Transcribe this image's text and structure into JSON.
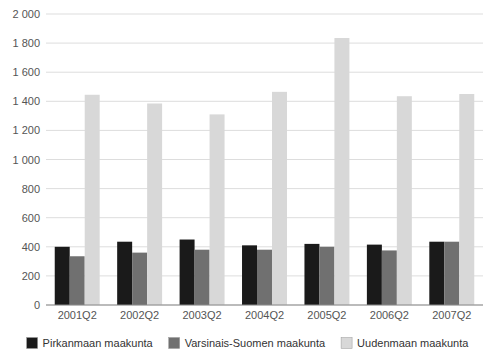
{
  "chart_data": {
    "type": "bar",
    "categories": [
      "2001Q2",
      "2002Q2",
      "2003Q2",
      "2004Q2",
      "2005Q2",
      "2006Q2",
      "2007Q2"
    ],
    "series": [
      {
        "name": "Pirkanmaan maakunta",
        "color": "#1a1a1a",
        "values": [
          400,
          435,
          450,
          410,
          420,
          415,
          435
        ]
      },
      {
        "name": "Varsinais-Suomen maakunta",
        "color": "#707070",
        "values": [
          335,
          360,
          380,
          380,
          400,
          375,
          435
        ]
      },
      {
        "name": "Uudenmaan maakunta",
        "color": "#d8d8d8",
        "values": [
          1445,
          1385,
          1310,
          1465,
          1835,
          1435,
          1450
        ]
      }
    ],
    "ylim": [
      0,
      2000
    ],
    "yticks": [
      0,
      200,
      400,
      600,
      800,
      {
        "value": 1000,
        "label": "1 000"
      },
      {
        "value": 1200,
        "label": "1 200"
      },
      {
        "value": 1400,
        "label": "1 400"
      },
      {
        "value": 1600,
        "label": "1 600"
      },
      {
        "value": 1800,
        "label": "1 800"
      },
      {
        "value": 2000,
        "label": "2 000"
      }
    ],
    "grid": true,
    "legend": "bottom"
  }
}
